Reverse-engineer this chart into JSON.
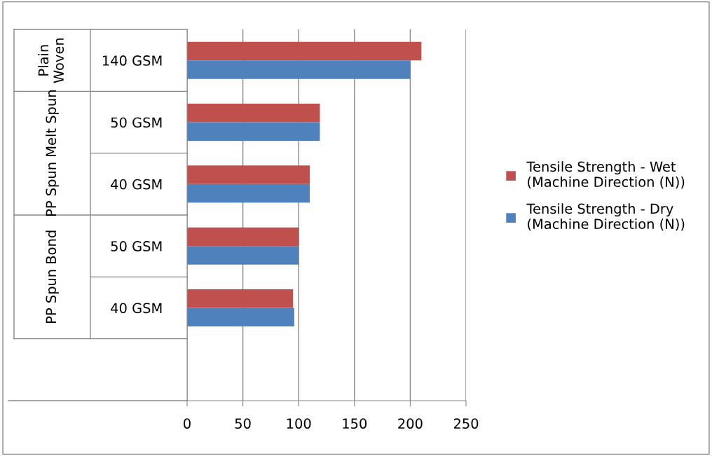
{
  "chart_data": {
    "type": "bar",
    "orientation": "horizontal",
    "categories": [
      "140 GSM",
      "50 GSM",
      "40 GSM",
      "50 GSM",
      "40 GSM"
    ],
    "series": [
      {
        "name": "Tensile Strength - Wet\n(Machine Direction (N))",
        "color": "#c0504d",
        "values": [
          210,
          119,
          110,
          100,
          95
        ]
      },
      {
        "name": "Tensile Strength - Dry\n(Machine Direction (N))",
        "color": "#4f81bd",
        "values": [
          200,
          119,
          110,
          100,
          96
        ]
      }
    ],
    "xlim": [
      0,
      250
    ],
    "xticks": [
      0,
      50,
      100,
      150,
      200,
      250
    ],
    "grid": "x",
    "legend": "right",
    "annotations": [
      "Plain\nWoven",
      "PP Spun Melt Spun",
      "PP Spun Bond"
    ]
  }
}
